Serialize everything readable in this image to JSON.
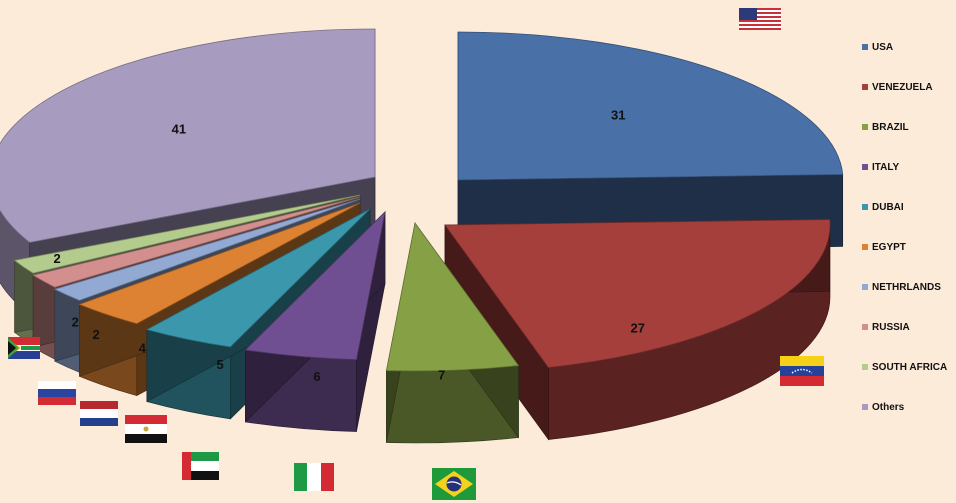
{
  "chart_data": {
    "type": "pie",
    "categories": [
      "USA",
      "VENEZUELA",
      "BRAZIL",
      "ITALY",
      "DUBAI",
      "EGYPT",
      "NETHRLANDS",
      "RUSSIA",
      "SOUTH AFRICA",
      "Others"
    ],
    "values": [
      31,
      27,
      7,
      6,
      5,
      4,
      2,
      2,
      2,
      41
    ],
    "colors": [
      "#4a70a8",
      "#a43f3c",
      "#86a046",
      "#6f4f92",
      "#3b97ab",
      "#dc8232",
      "#92a9d3",
      "#d38f8e",
      "#b3cc8e",
      "#a79bbf"
    ],
    "exploded": true,
    "three_d": true,
    "legend_position": "right",
    "title": "",
    "slice_icons": [
      "usa-flag-icon",
      "venezuela-flag-icon",
      "brazil-flag-icon",
      "italy-flag-icon",
      "uae-flag-icon",
      "egypt-flag-icon",
      "netherlands-flag-icon",
      "russia-flag-icon",
      "south-africa-flag-icon"
    ]
  }
}
